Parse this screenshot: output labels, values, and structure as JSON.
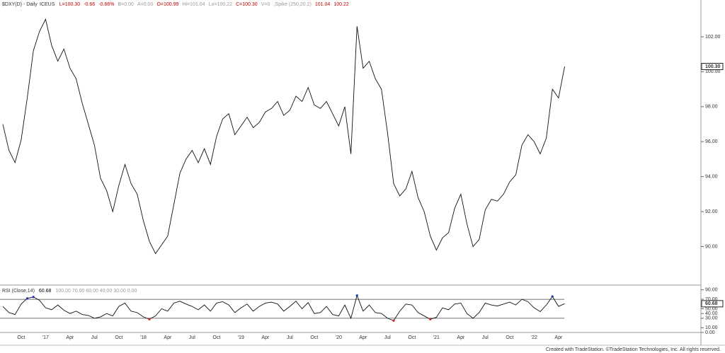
{
  "header": {
    "symbol": "$DXY(D) - Daily",
    "exchange": "ICEUS",
    "quotes": [
      {
        "text": "L=100.30",
        "color": "#c00000"
      },
      {
        "text": "-0.66",
        "color": "#c00000"
      },
      {
        "text": "-0.66%",
        "color": "#c00000"
      },
      {
        "text": "B=0.00",
        "color": "#999999"
      },
      {
        "text": "A=0.00",
        "color": "#999999"
      },
      {
        "text": "O=100.99",
        "color": "#c00000"
      },
      {
        "text": "Hi=101.04",
        "color": "#999999"
      },
      {
        "text": "Lo=100.22",
        "color": "#999999"
      },
      {
        "text": "C=100.30",
        "color": "#c00000"
      },
      {
        "text": "V=0",
        "color": "#999999"
      },
      {
        "text": ",Spike (250,20.2)",
        "color": "#999999"
      },
      {
        "text": "101.04",
        "color": "#c00000"
      },
      {
        "text": "100.22",
        "color": "#c00000"
      }
    ]
  },
  "footer": "Created with TradeStation. ©TradeStation Technologies, Inc. All rights reserved.",
  "chart_data": [
    {
      "type": "line",
      "color": "#111111",
      "categories": [
        null,
        null,
        null,
        "Oct",
        null,
        null,
        null,
        "'17",
        null,
        null,
        null,
        "Apr",
        null,
        null,
        null,
        "Jul",
        null,
        null,
        null,
        "Oct",
        null,
        null,
        null,
        "'18",
        null,
        null,
        null,
        "Apr",
        null,
        null,
        null,
        "Jul",
        null,
        null,
        null,
        "Oct",
        null,
        null,
        null,
        "'19",
        null,
        null,
        null,
        "Apr",
        null,
        null,
        null,
        "Jul",
        null,
        null,
        null,
        "Oct",
        null,
        null,
        null,
        "'20",
        null,
        null,
        null,
        "Apr",
        null,
        null,
        null,
        "Jul",
        null,
        null,
        null,
        "Oct",
        null,
        null,
        null,
        "'21",
        null,
        null,
        null,
        "Apr",
        null,
        null,
        null,
        "Jul",
        null,
        null,
        null,
        "Oct",
        null,
        null,
        null,
        "'22",
        null,
        null,
        null,
        "Apr",
        null
      ],
      "values": [
        97.0,
        95.5,
        94.8,
        96.1,
        98.5,
        101.2,
        102.3,
        103.0,
        101.5,
        100.6,
        101.3,
        100.2,
        99.6,
        98.2,
        97.0,
        95.8,
        93.9,
        93.2,
        92.0,
        93.5,
        94.7,
        93.6,
        93.0,
        91.5,
        90.3,
        89.6,
        90.1,
        90.6,
        92.4,
        94.2,
        95.0,
        95.5,
        94.8,
        95.6,
        94.7,
        96.3,
        97.3,
        97.6,
        96.4,
        96.9,
        97.4,
        96.8,
        97.1,
        97.7,
        97.9,
        98.3,
        97.5,
        97.8,
        98.6,
        98.3,
        99.1,
        98.1,
        97.9,
        98.3,
        97.6,
        96.9,
        98.0,
        95.3,
        102.6,
        100.2,
        100.6,
        99.6,
        99.0,
        96.5,
        93.6,
        92.9,
        93.3,
        94.3,
        92.8,
        92.0,
        90.6,
        89.8,
        90.5,
        90.8,
        92.2,
        93.0,
        91.3,
        90.0,
        90.4,
        92.1,
        92.7,
        92.6,
        93.0,
        93.7,
        94.1,
        95.8,
        96.4,
        96.0,
        95.3,
        96.2,
        99.0,
        98.5,
        100.3
      ],
      "last_label": "100.30",
      "ylim": [
        88.0,
        103.9
      ],
      "yticks": [
        {
          "value": 90,
          "label": "90.00"
        },
        {
          "value": 92,
          "label": "92.00"
        },
        {
          "value": 94,
          "label": "94.00"
        },
        {
          "value": 96,
          "label": "96.00"
        },
        {
          "value": 98,
          "label": "98.00"
        },
        {
          "value": 100,
          "label": "100.00"
        },
        {
          "value": 102,
          "label": "102.00"
        }
      ]
    },
    {
      "type": "line",
      "title": "RSI (Close,14)",
      "params": "100.00 70.00 60.00 40.00 30.00 0.00",
      "color": "#111111",
      "overbought_color": "#2030c0",
      "oversold_color": "#d02020",
      "levels": [
        70,
        30
      ],
      "values": [
        55,
        42,
        38,
        60,
        72,
        75,
        68,
        52,
        48,
        58,
        47,
        40,
        45,
        38,
        36,
        30,
        33,
        40,
        35,
        55,
        62,
        45,
        42,
        33,
        28,
        35,
        50,
        45,
        62,
        66,
        60,
        55,
        48,
        58,
        45,
        62,
        65,
        58,
        42,
        52,
        60,
        45,
        55,
        62,
        64,
        60,
        45,
        55,
        66,
        50,
        63,
        40,
        42,
        55,
        38,
        35,
        58,
        30,
        78,
        45,
        58,
        42,
        40,
        30,
        25,
        45,
        60,
        58,
        42,
        35,
        28,
        32,
        52,
        48,
        60,
        62,
        40,
        30,
        42,
        62,
        58,
        56,
        60,
        64,
        58,
        70,
        65,
        52,
        44,
        58,
        76,
        55,
        60.68
      ],
      "last_label": "60.68",
      "ylim": [
        0,
        100
      ],
      "yticks": [
        {
          "value": 90,
          "label": "90.00"
        },
        {
          "value": 70,
          "label": "70.00"
        },
        {
          "value": 50,
          "label": "50.00"
        },
        {
          "value": 40,
          "label": "40.00"
        },
        {
          "value": 30,
          "label": "30.00"
        },
        {
          "value": 10,
          "label": "10.00"
        },
        {
          "value": 0,
          "label": "0.00"
        }
      ]
    }
  ]
}
